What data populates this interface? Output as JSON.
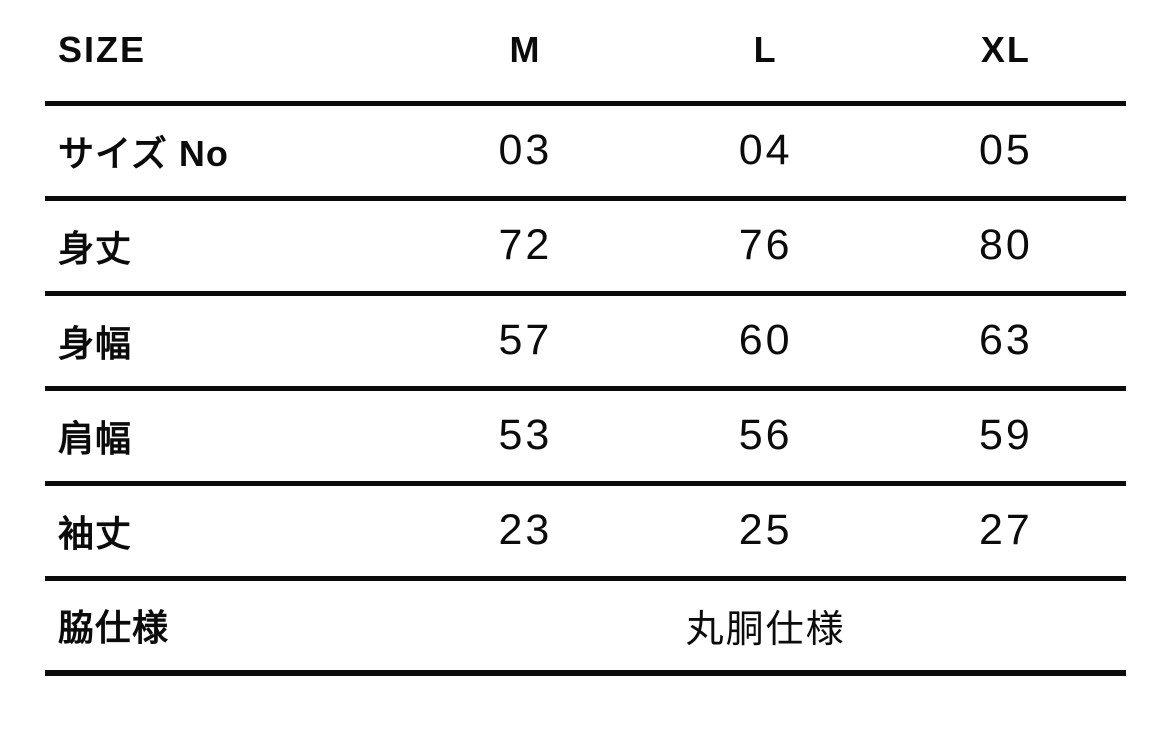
{
  "chart_data": {
    "type": "table",
    "columns": [
      "SIZE",
      "M",
      "L",
      "XL"
    ],
    "rows": [
      [
        "サイズ No",
        "03",
        "04",
        "05"
      ],
      [
        "身丈",
        "72",
        "76",
        "80"
      ],
      [
        "身幅",
        "57",
        "60",
        "63"
      ],
      [
        "肩幅",
        "53",
        "56",
        "59"
      ],
      [
        "袖丈",
        "23",
        "25",
        "27"
      ],
      [
        "脇仕様",
        "丸胴仕様"
      ]
    ]
  },
  "styles": {
    "text_color": "#0b0b0b",
    "rule_color": "#0b0b0b",
    "background": "#ffffff"
  }
}
